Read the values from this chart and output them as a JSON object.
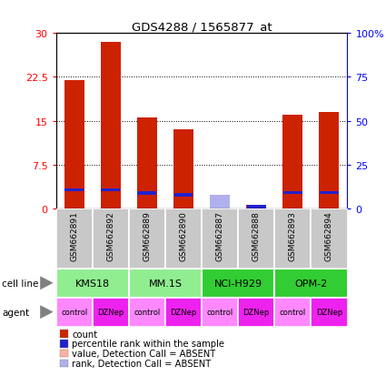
{
  "title": "GDS4288 / 1565877_at",
  "samples": [
    "GSM662891",
    "GSM662892",
    "GSM662889",
    "GSM662890",
    "GSM662887",
    "GSM662888",
    "GSM662893",
    "GSM662894"
  ],
  "count_values": [
    22.0,
    28.5,
    15.5,
    13.5,
    0.0,
    0.6,
    16.0,
    16.5
  ],
  "percentile_values": [
    10.5,
    10.5,
    8.5,
    7.5,
    0.0,
    0.8,
    9.0,
    9.0
  ],
  "absent": [
    false,
    false,
    false,
    false,
    true,
    false,
    false,
    false
  ],
  "absent_count": [
    0.0,
    0.0,
    0.0,
    0.0,
    2.0,
    0.0,
    0.0,
    0.0
  ],
  "absent_percentile": [
    0.0,
    0.0,
    0.0,
    0.0,
    7.5,
    0.0,
    0.0,
    0.0
  ],
  "cell_lines": [
    "KMS18",
    "MM.1S",
    "NCI-H929",
    "OPM-2"
  ],
  "cell_line_spans": [
    [
      0,
      1
    ],
    [
      2,
      3
    ],
    [
      4,
      5
    ],
    [
      6,
      7
    ]
  ],
  "cell_line_colors": [
    "#90EE90",
    "#90EE90",
    "#3CB371",
    "#3CB371"
  ],
  "agents": [
    "control",
    "DZNep",
    "control",
    "DZNep",
    "control",
    "DZNep",
    "control",
    "DZNep"
  ],
  "ylim_left": [
    0,
    30
  ],
  "ylim_right": [
    0,
    100
  ],
  "yticks_left": [
    0,
    7.5,
    15,
    22.5,
    30
  ],
  "yticks_right": [
    0,
    25,
    50,
    75,
    100
  ],
  "ytick_labels_left": [
    "0",
    "7.5",
    "15",
    "22.5",
    "30"
  ],
  "ytick_labels_right": [
    "0",
    "25",
    "50",
    "75",
    "100%"
  ],
  "bar_color_red": "#CC2200",
  "bar_color_blue": "#2222CC",
  "bar_color_absent_red": "#FFB0A0",
  "bar_color_absent_blue": "#B0B0EE",
  "tick_label_bg": "#C8C8C8",
  "cell_line_color_light": "#90EE90",
  "cell_line_color_dark": "#32CD32",
  "agent_color_control": "#FF88FF",
  "agent_color_DZNep": "#EE22EE",
  "legend_items": [
    {
      "color": "#CC2200",
      "label": "count"
    },
    {
      "color": "#2222CC",
      "label": "percentile rank within the sample"
    },
    {
      "color": "#FFB0A0",
      "label": "value, Detection Call = ABSENT"
    },
    {
      "color": "#B0B0EE",
      "label": "rank, Detection Call = ABSENT"
    }
  ]
}
